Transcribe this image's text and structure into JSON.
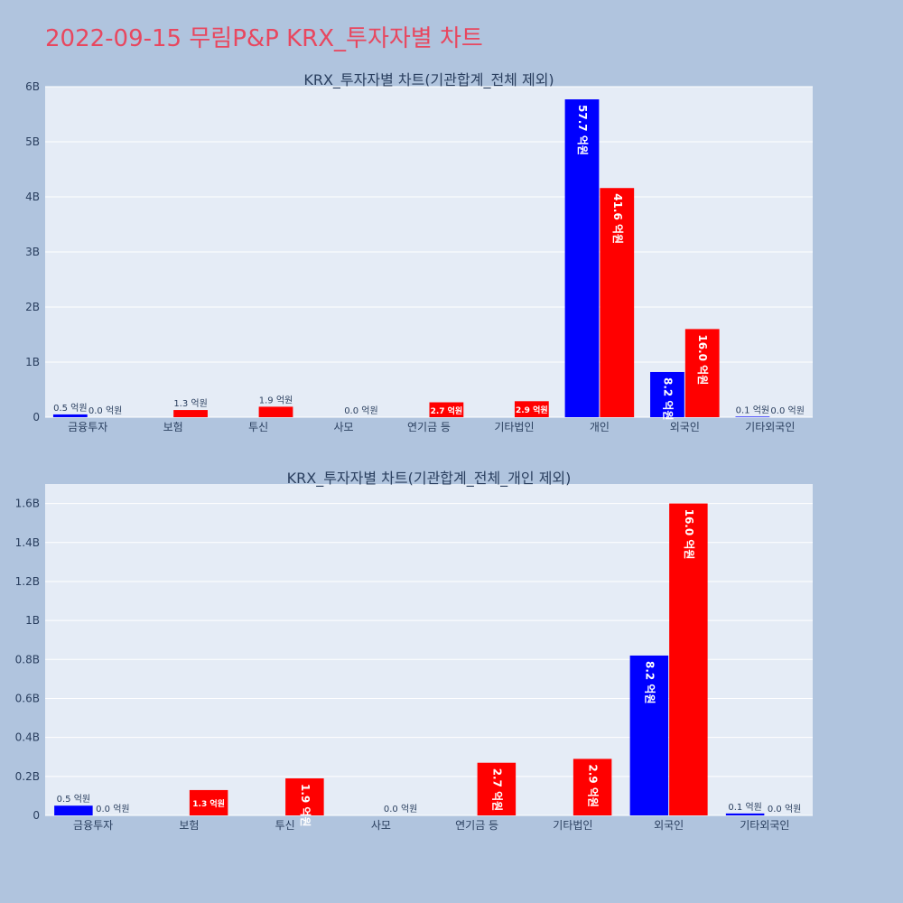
{
  "page": {
    "title": "2022-09-15 무림P&P KRX_투자자별 차트"
  },
  "colors": {
    "background": "#b0c4de",
    "plot_background": "#e5ecf6",
    "title": "#e8475f",
    "series_blue": "#0000ff",
    "series_red": "#ff0000"
  },
  "chart_data": [
    {
      "type": "bar",
      "title": "KRX_투자자별 차트(기관합계_전체 제외)",
      "categories": [
        "금융투자",
        "보험",
        "투신",
        "사모",
        "연기금 등",
        "기타법인",
        "개인",
        "외국인",
        "기타외국인"
      ],
      "ylim": [
        0,
        6000000000
      ],
      "yticks": [
        0,
        1000000000,
        2000000000,
        3000000000,
        4000000000,
        5000000000,
        6000000000
      ],
      "ytick_labels": [
        "0",
        "1B",
        "2B",
        "3B",
        "4B",
        "5B",
        "6B"
      ],
      "grid": true,
      "series": [
        {
          "color": "#0000ff",
          "values": [
            50000000,
            0,
            0,
            0,
            0,
            0,
            5770000000,
            820000000,
            10000000
          ],
          "labels": [
            "0.5 억원",
            "",
            "",
            "",
            "",
            "",
            "57.7 억원",
            "8.2 억원",
            "0.1 억원"
          ]
        },
        {
          "color": "#ff0000",
          "values": [
            0,
            130000000,
            190000000,
            0,
            270000000,
            290000000,
            4160000000,
            1600000000,
            0
          ],
          "labels": [
            "0.0 억원",
            "1.3 억원",
            "1.9 억원",
            "0.0 억원",
            "2.7 억원",
            "2.9 억원",
            "41.6 억원",
            "16.0 억원",
            "0.0 억원"
          ]
        }
      ]
    },
    {
      "type": "bar",
      "title": "KRX_투자자별 차트(기관합계_전체_개인 제외)",
      "categories": [
        "금융투자",
        "보험",
        "투신",
        "사모",
        "연기금 등",
        "기타법인",
        "외국인",
        "기타외국인"
      ],
      "ylim": [
        0,
        1700000000
      ],
      "yticks": [
        0,
        200000000,
        400000000,
        600000000,
        800000000,
        1000000000,
        1200000000,
        1400000000,
        1600000000
      ],
      "ytick_labels": [
        "0",
        "0.2B",
        "0.4B",
        "0.6B",
        "0.8B",
        "1B",
        "1.2B",
        "1.4B",
        "1.6B"
      ],
      "grid": true,
      "series": [
        {
          "color": "#0000ff",
          "values": [
            50000000,
            0,
            0,
            0,
            0,
            0,
            820000000,
            10000000
          ],
          "labels": [
            "0.5 억원",
            "",
            "",
            "",
            "",
            "",
            "8.2 억원",
            "0.1 억원"
          ]
        },
        {
          "color": "#ff0000",
          "values": [
            0,
            130000000,
            190000000,
            0,
            270000000,
            290000000,
            1600000000,
            0
          ],
          "labels": [
            "0.0 억원",
            "1.3 억원",
            "1.9 억원",
            "0.0 억원",
            "2.7 억원",
            "2.9 억원",
            "16.0 억원",
            "0.0 억원"
          ]
        }
      ]
    }
  ]
}
